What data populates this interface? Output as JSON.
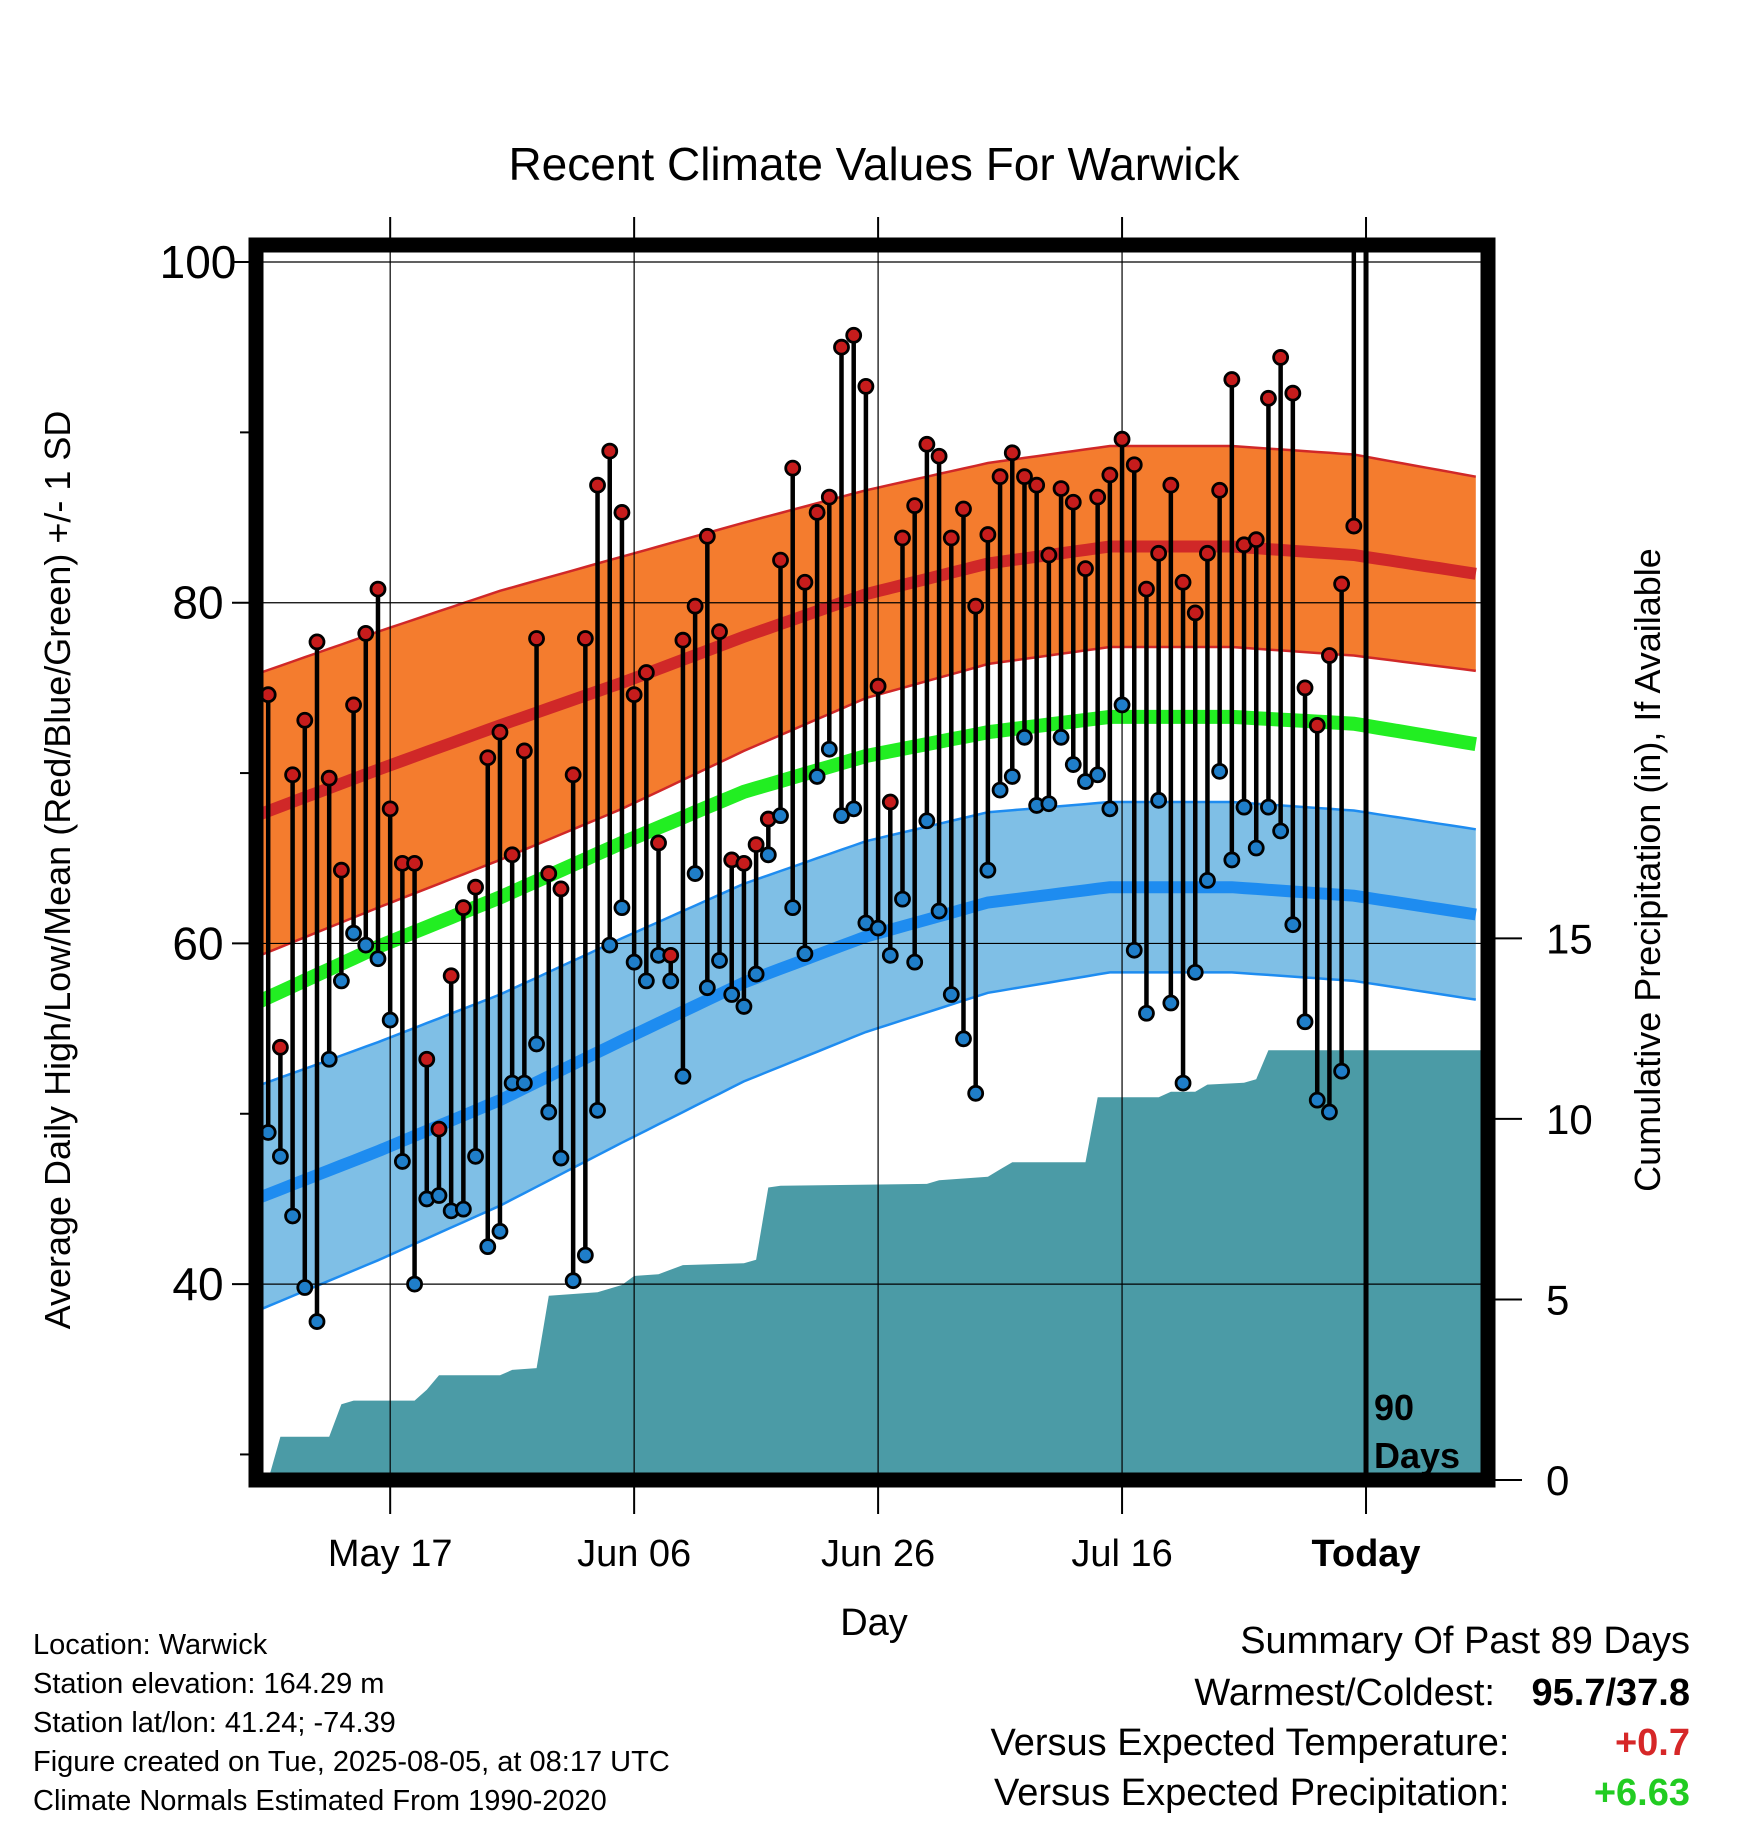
{
  "chart_data": {
    "type": "line",
    "title": "Recent Climate Values For Warwick",
    "xlabel": "Day",
    "ylabel": "Average Daily High/Low/Mean (Red/Blue/Green) +/- 1 SD",
    "y2label": "Cumulative Precipitation (in), If Available",
    "x_tick_labels": [
      "May 17",
      "Jun 06",
      "Jun 26",
      "Jul 16",
      "Today"
    ],
    "x_tick_days": [
      11,
      31,
      51,
      71,
      91
    ],
    "xlim": [
      0,
      101
    ],
    "y_ticks": [
      40,
      60,
      80,
      100
    ],
    "ylim": [
      28.5,
      101
    ],
    "y2_ticks": [
      0,
      5,
      10,
      15
    ],
    "y2lim": [
      0,
      34.2
    ],
    "grid": true,
    "today_marker_label": [
      "90",
      "Days"
    ],
    "normals": {
      "days": [
        0,
        10,
        20,
        30,
        40,
        50,
        60,
        70,
        80,
        90,
        100
      ],
      "high_mean": [
        67.5,
        70.2,
        72.8,
        75.3,
        78.0,
        80.5,
        82.3,
        83.3,
        83.3,
        82.8,
        81.7
      ],
      "high_sd": [
        8.3,
        8.1,
        7.9,
        7.4,
        6.7,
        6.1,
        5.9,
        5.9,
        5.9,
        5.9,
        5.7
      ],
      "mean": [
        56.5,
        59.8,
        62.7,
        65.9,
        68.9,
        71.0,
        72.4,
        73.3,
        73.3,
        72.9,
        71.7
      ],
      "low_mean": [
        45.0,
        47.8,
        50.8,
        54.3,
        57.7,
        60.4,
        62.4,
        63.3,
        63.3,
        62.8,
        61.7
      ],
      "low_sd": [
        6.6,
        6.4,
        6.2,
        6.0,
        5.8,
        5.6,
        5.3,
        5.0,
        5.0,
        5.0,
        5.0
      ]
    },
    "series": [
      {
        "name": "Daily High",
        "color": "#c61c1c",
        "values": [
          74.6,
          53.9,
          69.9,
          73.1,
          77.7,
          69.7,
          64.3,
          74.0,
          78.2,
          80.8,
          67.9,
          64.7,
          64.7,
          53.2,
          49.1,
          58.1,
          62.1,
          63.3,
          70.9,
          72.4,
          65.2,
          71.3,
          77.9,
          64.1,
          63.2,
          69.9,
          77.9,
          86.9,
          88.9,
          85.3,
          74.6,
          75.9,
          65.9,
          59.3,
          77.8,
          79.8,
          83.9,
          78.3,
          64.9,
          64.7,
          65.8,
          67.3,
          82.5,
          87.9,
          81.2,
          85.3,
          86.2,
          95.0,
          95.7,
          92.7,
          75.1,
          68.3,
          83.8,
          85.7,
          89.3,
          88.6,
          83.8,
          85.5,
          79.8,
          84.0,
          87.4,
          88.8,
          87.4,
          86.9,
          82.8,
          86.7,
          85.9,
          82.0,
          86.2,
          87.5,
          89.6,
          88.1,
          80.8,
          82.9,
          86.9,
          81.2,
          79.4,
          82.9,
          86.6,
          93.1,
          83.4,
          83.7,
          92.0,
          94.4,
          92.3,
          75.0,
          72.8,
          76.9,
          81.1,
          84.5
        ]
      },
      {
        "name": "Daily Low",
        "color": "#1f7ec9",
        "values": [
          48.9,
          47.5,
          44.0,
          39.8,
          37.8,
          53.2,
          57.8,
          60.6,
          59.9,
          59.1,
          55.5,
          47.2,
          40.0,
          45.0,
          45.2,
          44.3,
          44.4,
          47.5,
          42.2,
          43.1,
          51.8,
          51.8,
          54.1,
          50.1,
          47.4,
          40.2,
          41.7,
          50.2,
          59.9,
          62.1,
          58.9,
          57.8,
          59.3,
          57.8,
          52.2,
          64.1,
          57.4,
          59.0,
          57.0,
          56.3,
          58.2,
          65.2,
          67.5,
          62.1,
          59.4,
          69.8,
          71.4,
          67.5,
          67.9,
          61.2,
          60.9,
          59.3,
          62.6,
          58.9,
          67.2,
          61.9,
          57.0,
          54.4,
          51.2,
          64.3,
          69.0,
          69.8,
          72.1,
          68.1,
          68.2,
          72.1,
          70.5,
          69.5,
          69.9,
          67.9,
          74.0,
          59.6,
          55.9,
          68.4,
          56.5,
          51.8,
          58.3,
          63.7,
          70.1,
          64.9,
          68.0,
          65.6,
          68.0,
          66.6,
          61.1,
          55.4,
          50.8,
          50.1,
          52.5
        ]
      },
      {
        "name": "Cumulative Precipitation",
        "color": "#4b9ba6",
        "steps": [
          [
            0,
            0
          ],
          [
            1,
            0
          ],
          [
            2,
            1.2
          ],
          [
            6,
            1.2
          ],
          [
            7,
            2.1
          ],
          [
            8,
            2.2
          ],
          [
            13,
            2.2
          ],
          [
            14,
            2.5
          ],
          [
            15,
            2.9
          ],
          [
            20,
            2.9
          ],
          [
            21,
            3.05
          ],
          [
            23,
            3.1
          ],
          [
            24,
            5.1
          ],
          [
            28,
            5.2
          ],
          [
            30,
            5.4
          ],
          [
            31,
            5.65
          ],
          [
            33,
            5.7
          ],
          [
            35,
            5.95
          ],
          [
            40,
            6.0
          ],
          [
            41,
            6.1
          ],
          [
            42,
            8.1
          ],
          [
            43,
            8.15
          ],
          [
            55,
            8.2
          ],
          [
            56,
            8.3
          ],
          [
            60,
            8.4
          ],
          [
            61,
            8.6
          ],
          [
            62,
            8.8
          ],
          [
            68,
            8.8
          ],
          [
            69,
            10.6
          ],
          [
            74,
            10.6
          ],
          [
            75,
            10.75
          ],
          [
            77,
            10.75
          ],
          [
            78,
            10.95
          ],
          [
            81,
            11.0
          ],
          [
            82,
            11.1
          ],
          [
            83,
            11.9
          ],
          [
            101,
            11.9
          ]
        ]
      }
    ]
  },
  "info_lines": [
    "Location: Warwick",
    "Station elevation: 164.29 m",
    "Station lat/lon: 41.24; -74.39",
    "Figure created on Tue, 2025-08-05, at 08:17 UTC",
    "Climate Normals Estimated From 1990-2020"
  ],
  "summary": {
    "title": "Summary Of Past 89 Days",
    "warmest_label": "Warmest/Coldest:",
    "warmest_value": "95.7/37.8",
    "temp_label": "Versus Expected Temperature:",
    "temp_value": "+0.7",
    "temp_color": "#d62728",
    "precip_label": "Versus Expected Precipitation:",
    "precip_value": "+6.63",
    "precip_color": "#22cc22"
  },
  "colors": {
    "high_band": "#f47c2e",
    "high_line": "#d02828",
    "mean_line": "#22ee22",
    "low_band": "#7fbfe6",
    "low_line": "#1e8cf0",
    "precip_fill": "#4b9ba6"
  }
}
